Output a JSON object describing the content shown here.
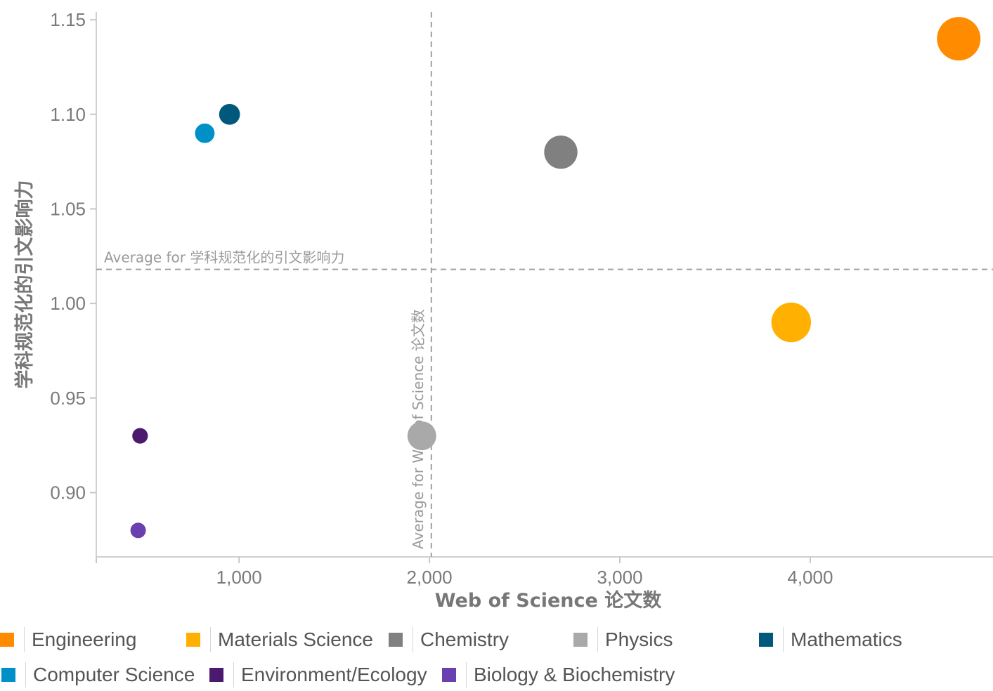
{
  "chart_data": {
    "type": "scatter",
    "title": "",
    "xlabel": "Web of Science 论文数",
    "ylabel": "学科规范化的引文影响力",
    "xlim": [
      250,
      4960
    ],
    "ylim": [
      0.866,
      1.156
    ],
    "x_ticks": [
      1000,
      2000,
      3000,
      4000
    ],
    "x_tick_labels": [
      "1,000",
      "2,000",
      "3,000",
      "4,000"
    ],
    "y_ticks": [
      0.9,
      0.95,
      1.0,
      1.05,
      1.1,
      1.15
    ],
    "y_tick_labels": [
      "0.90",
      "0.95",
      "1.00",
      "1.05",
      "1.10",
      "1.15"
    ],
    "grid": false,
    "legend_position": "bottom",
    "reference_lines": [
      {
        "axis": "y",
        "value": 1.018,
        "label": "Average for 学科规范化的引文影响力"
      },
      {
        "axis": "x",
        "value": 2010,
        "label": "Average for Web of Science 论文数"
      }
    ],
    "series": [
      {
        "name": "Engineering",
        "color": "#ff8c00",
        "x": 4780,
        "y": 1.14,
        "size": 4780
      },
      {
        "name": "Materials Science",
        "color": "#ffb000",
        "x": 3900,
        "y": 0.99,
        "size": 3900
      },
      {
        "name": "Chemistry",
        "color": "#808080",
        "x": 2690,
        "y": 1.08,
        "size": 2690
      },
      {
        "name": "Physics",
        "color": "#a9a9a9",
        "x": 1960,
        "y": 0.93,
        "size": 1960
      },
      {
        "name": "Mathematics",
        "color": "#00587c",
        "x": 950,
        "y": 1.1,
        "size": 950
      },
      {
        "name": "Computer Science",
        "color": "#0090c8",
        "x": 820,
        "y": 1.09,
        "size": 820
      },
      {
        "name": "Environment/Ecology",
        "color": "#4b1a6e",
        "x": 480,
        "y": 0.93,
        "size": 480
      },
      {
        "name": "Biology & Biochemistry",
        "color": "#6a3fb0",
        "x": 470,
        "y": 0.88,
        "size": 470
      }
    ]
  },
  "legend": {
    "items": [
      {
        "label": "Engineering",
        "color": "#ff8c00"
      },
      {
        "label": "Materials Science",
        "color": "#ffb000"
      },
      {
        "label": "Chemistry",
        "color": "#808080"
      },
      {
        "label": "Physics",
        "color": "#a9a9a9"
      },
      {
        "label": "Mathematics",
        "color": "#00587c"
      },
      {
        "label": "Computer Science",
        "color": "#0090c8"
      },
      {
        "label": "Environment/Ecology",
        "color": "#4b1a6e"
      },
      {
        "label": "Biology & Biochemistry",
        "color": "#6a3fb0"
      }
    ]
  }
}
